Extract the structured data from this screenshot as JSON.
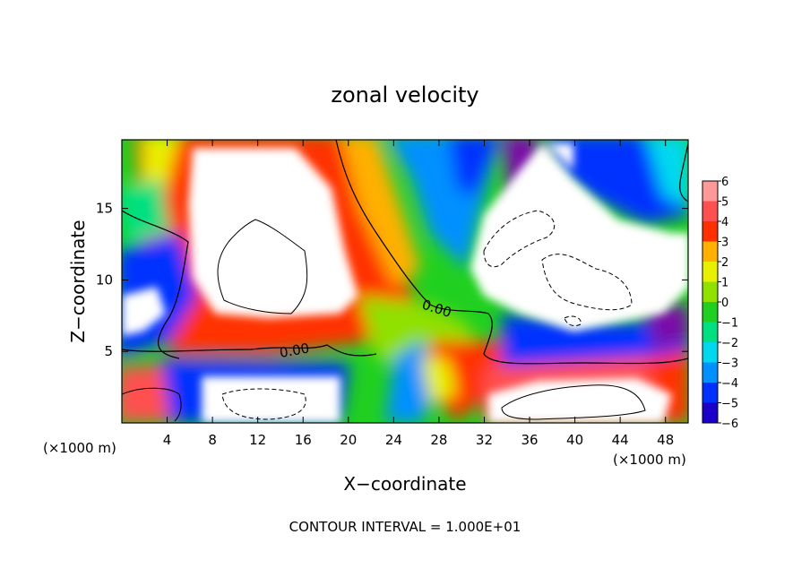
{
  "chart_data": {
    "type": "heatmap",
    "title": "zonal velocity",
    "xlabel": "X−coordinate",
    "ylabel": "Z−coordinate",
    "x_unit_label_left": "(×1000 m)",
    "x_unit_label_right": "(×1000 m)",
    "footer": "CONTOUR INTERVAL = 1.000E+01",
    "contour_label_1": "0.00",
    "contour_label_2": "0.00",
    "xlim": [
      0,
      50
    ],
    "ylim": [
      0,
      19.8
    ],
    "x_ticks": [
      4,
      8,
      12,
      16,
      20,
      24,
      28,
      32,
      36,
      40,
      44,
      48
    ],
    "y_ticks": [
      5,
      10,
      15
    ],
    "colorbar": {
      "min": -6,
      "max": 6,
      "labels": [
        "6",
        "5",
        "4",
        "3",
        "2",
        "1",
        "0",
        "−1",
        "−2",
        "−3",
        "−4",
        "−5",
        "−6"
      ]
    },
    "colors": {
      "neg6": "#7a10a8",
      "neg5": "#1a00c8",
      "neg4": "#0030ff",
      "neg3": "#0090ff",
      "neg2": "#00d8f0",
      "neg1": "#00e080",
      "zero": "#20d020",
      "pos1": "#90e000",
      "pos2": "#e8f000",
      "pos3": "#ffb000",
      "pos4": "#ff3000",
      "pos5": "#ff5050",
      "pos6": "#ff9898"
    }
  }
}
